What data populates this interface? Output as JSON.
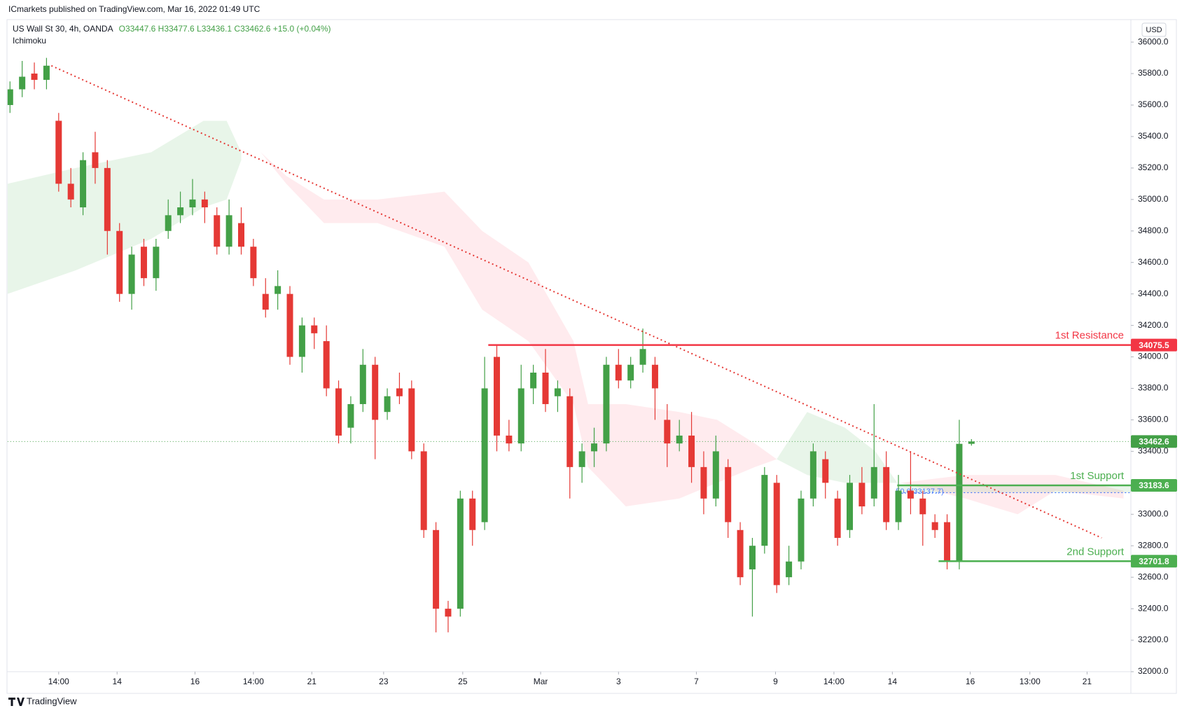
{
  "header": {
    "publisher": "ICmarkets published on TradingView.com, Mar 16, 2022 01:49 UTC",
    "symbol": "US Wall St 30, 4h, OANDA",
    "ohlc": "O33447.6 H33477.6 L33436.1 C33462.6 +15.0 (+0.04%)",
    "indicator": "Ichimoku",
    "currency": "USD",
    "brand": "TradingView"
  },
  "chart_data": {
    "type": "candlestick",
    "up_color": "#43a047",
    "down_color": "#e53935",
    "x": [
      0,
      1,
      2,
      3,
      4,
      5,
      6,
      7,
      8,
      9,
      10,
      11,
      12,
      13,
      14,
      15,
      16,
      17,
      18,
      19,
      20,
      21,
      22,
      23,
      24,
      25,
      26,
      27,
      28,
      29,
      30,
      31,
      32,
      33,
      34,
      35,
      36,
      37,
      38,
      39,
      40,
      41,
      42,
      43,
      44,
      45,
      46,
      47,
      48,
      49,
      50,
      51,
      52,
      53,
      54,
      55,
      56,
      57,
      58,
      59,
      60,
      61,
      62,
      63,
      64,
      65,
      66,
      67,
      68,
      69,
      70,
      71,
      72,
      73,
      74,
      75,
      76,
      77,
      78,
      79
    ],
    "open": [
      35600,
      35700,
      35800,
      35760,
      35500,
      35100,
      34950,
      35300,
      35200,
      34800,
      34400,
      34700,
      34500,
      34800,
      34900,
      34950,
      35000,
      34900,
      34700,
      34850,
      34700,
      34400,
      34400,
      34400,
      34000,
      34200,
      34100,
      33800,
      33550,
      33700,
      33950,
      33650,
      33800,
      33800,
      33400,
      32900,
      32400,
      32400,
      33100,
      32950,
      34000,
      33500,
      33450,
      33800,
      33900,
      33750,
      33750,
      33300,
      33400,
      33450,
      33950,
      33850,
      33950,
      33950,
      33600,
      33450,
      33500,
      33300,
      33100,
      33300,
      32900,
      32650,
      32800,
      33200,
      32600,
      32700,
      33100,
      33350,
      33100,
      32900,
      33200,
      33100,
      33300,
      32950,
      33150,
      33100,
      32950,
      32950,
      32700,
      33447.6
    ],
    "high": [
      35750,
      35880,
      35870,
      35900,
      35550,
      35200,
      35300,
      35430,
      35250,
      34850,
      34700,
      34750,
      34750,
      35000,
      35050,
      35130,
      35050,
      34950,
      35000,
      34950,
      34750,
      34500,
      34550,
      34450,
      34250,
      34250,
      34200,
      33850,
      33750,
      34050,
      34000,
      33800,
      33900,
      33850,
      33450,
      32950,
      32450,
      33150,
      33150,
      34000,
      34080,
      33600,
      33950,
      33950,
      34050,
      33850,
      33800,
      33450,
      33550,
      34000,
      34050,
      34000,
      34180,
      34000,
      33700,
      33600,
      33650,
      33400,
      33500,
      33350,
      32950,
      32850,
      33300,
      33250,
      32800,
      33150,
      33450,
      33400,
      33150,
      33250,
      33300,
      33700,
      33400,
      33250,
      33400,
      33150,
      33000,
      33000,
      33600,
      33477.6
    ],
    "low": [
      35550,
      35650,
      35700,
      35700,
      35050,
      34950,
      34900,
      35100,
      34650,
      34350,
      34300,
      34450,
      34420,
      34750,
      34850,
      34900,
      34850,
      34650,
      34650,
      34650,
      34450,
      34250,
      34300,
      33950,
      33900,
      34050,
      33750,
      33450,
      33450,
      33650,
      33350,
      33600,
      33700,
      33350,
      32850,
      32250,
      32250,
      32350,
      32800,
      32900,
      33400,
      33400,
      33400,
      33700,
      33650,
      33650,
      33100,
      33200,
      33300,
      33400,
      33800,
      33800,
      33900,
      33600,
      33300,
      33400,
      33200,
      33000,
      33050,
      32850,
      32550,
      32350,
      32750,
      32500,
      32550,
      32650,
      33050,
      33100,
      32800,
      32850,
      33000,
      33050,
      32900,
      32900,
      33000,
      32800,
      32850,
      32650,
      32650,
      33436.1
    ],
    "close": [
      35700,
      35780,
      35760,
      35850,
      35100,
      35000,
      35250,
      35200,
      34800,
      34400,
      34650,
      34500,
      34700,
      34900,
      34950,
      35000,
      34950,
      34700,
      34900,
      34700,
      34500,
      34300,
      34450,
      34000,
      34200,
      34150,
      33800,
      33500,
      33700,
      33950,
      33600,
      33750,
      33750,
      33400,
      32900,
      32400,
      32350,
      33100,
      32900,
      33800,
      33500,
      33450,
      33800,
      33900,
      33700,
      33800,
      33300,
      33400,
      33450,
      33950,
      33850,
      33950,
      34050,
      33800,
      33450,
      33500,
      33300,
      33100,
      33400,
      32950,
      32600,
      32800,
      33250,
      32550,
      32700,
      33100,
      33400,
      33200,
      32850,
      33200,
      33050,
      33300,
      32950,
      33150,
      33100,
      33000,
      32900,
      32700,
      33447.6,
      33462.6
    ],
    "xlim": [
      -0.2,
      92.1
    ],
    "xticks": [
      {
        "value": 4.0,
        "label": "14:00"
      },
      {
        "value": 8.8,
        "label": "14"
      },
      {
        "value": 15.2,
        "label": "16"
      },
      {
        "value": 20.0,
        "label": "14:00"
      },
      {
        "value": 24.8,
        "label": "21"
      },
      {
        "value": 30.7,
        "label": "23"
      },
      {
        "value": 37.2,
        "label": "25"
      },
      {
        "value": 43.6,
        "label": "Mar"
      },
      {
        "value": 50.0,
        "label": "3"
      },
      {
        "value": 56.4,
        "label": "7"
      },
      {
        "value": 62.9,
        "label": "9"
      },
      {
        "value": 67.7,
        "label": "14:00"
      },
      {
        "value": 72.5,
        "label": "14"
      },
      {
        "value": 78.9,
        "label": "16"
      },
      {
        "value": 83.8,
        "label": "13:00"
      },
      {
        "value": 88.5,
        "label": "21"
      }
    ],
    "ylim": [
      32000,
      36125
    ],
    "yticks": [
      {
        "value": 32000,
        "label": "32000.0"
      },
      {
        "value": 32200,
        "label": "32200.0"
      },
      {
        "value": 32400,
        "label": "32400.0"
      },
      {
        "value": 32600,
        "label": "32600.0"
      },
      {
        "value": 32800,
        "label": "32800.0"
      },
      {
        "value": 33000,
        "label": "33000.0"
      },
      {
        "value": 33200,
        "label": "33200.0"
      },
      {
        "value": 33400,
        "label": "33400.0"
      },
      {
        "value": 33600,
        "label": "33600.0"
      },
      {
        "value": 33800,
        "label": "33800.0"
      },
      {
        "value": 34000,
        "label": "34000.0"
      },
      {
        "value": 34200,
        "label": "34200.0"
      },
      {
        "value": 34400,
        "label": "34400.0"
      },
      {
        "value": 34600,
        "label": "34600.0"
      },
      {
        "value": 34800,
        "label": "34800.0"
      },
      {
        "value": 35000,
        "label": "35000.0"
      },
      {
        "value": 35200,
        "label": "35200.0"
      },
      {
        "value": 35400,
        "label": "35400.0"
      },
      {
        "value": 35600,
        "label": "35600.0"
      },
      {
        "value": 35800,
        "label": "35800.0"
      },
      {
        "value": 36000,
        "label": "36000.0"
      }
    ],
    "cloud": [
      {
        "color": "#e8f5e9",
        "x": [
          -0.2,
          5.4,
          11.6,
          15.9,
          17.8,
          19.0
        ],
        "upper": [
          35100,
          35200,
          35300,
          35500,
          35500,
          35300
        ],
        "lower": [
          34400,
          34550,
          34750,
          34950,
          35000,
          35250
        ]
      },
      {
        "color": "#ffebee",
        "x": [
          20.6,
          22.7,
          25.8,
          30.2,
          35.7,
          38.8,
          42.6,
          46.3,
          47.5,
          50.6,
          55.0,
          58.1,
          61.2,
          63.0
        ],
        "upper": [
          35300,
          35150,
          35000,
          35000,
          35050,
          34800,
          34600,
          34100,
          33700,
          33700,
          33650,
          33600,
          33450,
          33350
        ],
        "lower": [
          35300,
          35100,
          34850,
          34850,
          34700,
          34300,
          34100,
          33700,
          33300,
          33050,
          33100,
          33200,
          33300,
          33350
        ]
      },
      {
        "color": "#e8f5e9",
        "x": [
          63.0,
          65.5,
          68.6,
          71.1,
          72.9
        ],
        "upper": [
          33350,
          33650,
          33550,
          33400,
          33200
        ],
        "lower": [
          33350,
          33250,
          33200,
          33200,
          33200
        ]
      },
      {
        "color": "#ffebee",
        "x": [
          73.2,
          78.5,
          82.8,
          85.9,
          91.5
        ],
        "upper": [
          33200,
          33250,
          33250,
          33250,
          33150
        ],
        "lower": [
          33200,
          33100,
          33000,
          33150,
          33100
        ]
      }
    ],
    "trendline": {
      "x": [
        3.4,
        89.7
      ],
      "y": [
        35850,
        32850
      ],
      "color": "#e53935"
    },
    "levels": [
      {
        "label": "1st Resistance",
        "value": 34075.5,
        "x_start": 39.3,
        "color": "#f23645"
      },
      {
        "label": "1st Support",
        "value": 33183.6,
        "x_start": 72.9,
        "color": "#4caf50"
      },
      {
        "label": "2nd Support",
        "value": 32701.8,
        "x_start": 76.3,
        "color": "#4caf50"
      }
    ],
    "fib": {
      "label": "50.0(33137.7)",
      "value": 33137.7,
      "x_start": 72.9,
      "color": "#2962ff"
    },
    "last_price": {
      "value": 33462.6,
      "color": "#43a047"
    }
  }
}
